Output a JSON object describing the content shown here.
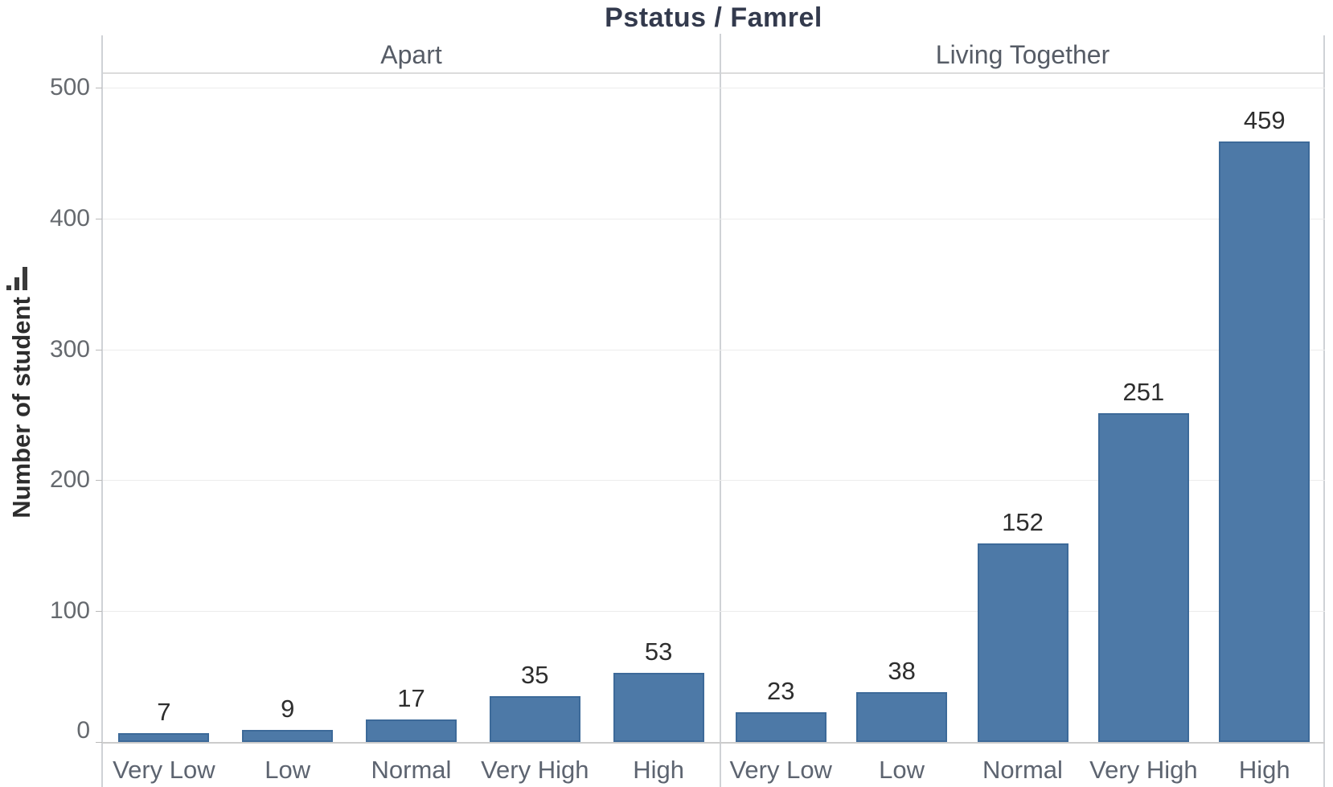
{
  "title": "Pstatus / Famrel",
  "y_axis": {
    "label": "Number of student",
    "sort_icon": "sort-ascending-bars-icon"
  },
  "colors": {
    "bar_fill": "#4d79a7",
    "bar_border": "#3d6a99",
    "title_text": "#333a4d",
    "header_text": "#565c66",
    "tick_text": "#65696e",
    "category_text": "#5d6470",
    "value_text": "#2e2e2e",
    "gridline": "#ececec",
    "axis_line": "#cccccc"
  },
  "chart_data": {
    "type": "bar",
    "title": "Pstatus / Famrel",
    "xlabel": "",
    "ylabel": "Number of student",
    "ylim": [
      0,
      511
    ],
    "yticks": [
      0,
      100,
      200,
      300,
      400,
      500
    ],
    "grid": "horizontal",
    "legend": "none",
    "categories": [
      "Very Low",
      "Low",
      "Normal",
      "Very High",
      "High"
    ],
    "panels": [
      {
        "label": "Apart",
        "values": [
          7,
          9,
          17,
          35,
          53
        ]
      },
      {
        "label": "Living Together",
        "values": [
          23,
          38,
          152,
          251,
          459
        ]
      }
    ]
  }
}
